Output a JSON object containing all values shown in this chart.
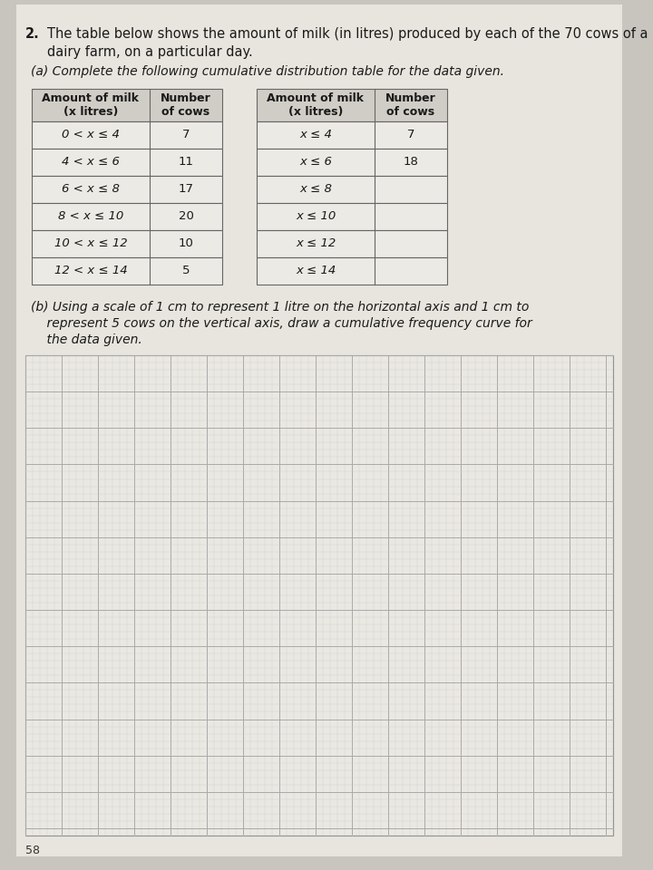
{
  "title_number": "2.",
  "title_text": "The table below shows the amount of milk (in litres) produced by each of the 70 cows of a",
  "title_line2": "dairy farm, on a particular day.",
  "part_a_text": "(a) Complete the following cumulative distribution table for the data given.",
  "part_b_line1": "(b) Using a scale of 1 cm to represent 1 litre on the horizontal axis and 1 cm to",
  "part_b_line2": "    represent 5 cows on the vertical axis, draw a cumulative frequency curve for",
  "part_b_line3": "    the data given.",
  "page_number": "58",
  "left_table_headers": [
    "Amount of milk\n(x litres)",
    "Number\nof cows"
  ],
  "left_table_rows": [
    [
      "0 < x ≤ 4",
      "7"
    ],
    [
      "4 < x ≤ 6",
      "11"
    ],
    [
      "6 < x ≤ 8",
      "17"
    ],
    [
      "8 < x ≤ 10",
      "20"
    ],
    [
      "10 < x ≤ 12",
      "10"
    ],
    [
      "12 < x ≤ 14",
      "5"
    ]
  ],
  "right_table_headers": [
    "Amount of milk\n(x litres)",
    "Number\nof cows"
  ],
  "right_table_rows": [
    [
      "x ≤ 4",
      "7"
    ],
    [
      "x ≤ 6",
      "18"
    ],
    [
      "x ≤ 8",
      ""
    ],
    [
      "x ≤ 10",
      ""
    ],
    [
      "x ≤ 12",
      ""
    ],
    [
      "x ≤ 14",
      ""
    ]
  ],
  "outer_bg": "#c8c5be",
  "page_bg": "#e8e5de",
  "table_header_bg": "#d0cdc6",
  "table_row_bg": "#eceae4",
  "text_color": "#1a1a1a",
  "grid_bg": "#eae8e2",
  "grid_major_color": "#aaaaaa",
  "grid_minor_color": "#cccccc"
}
